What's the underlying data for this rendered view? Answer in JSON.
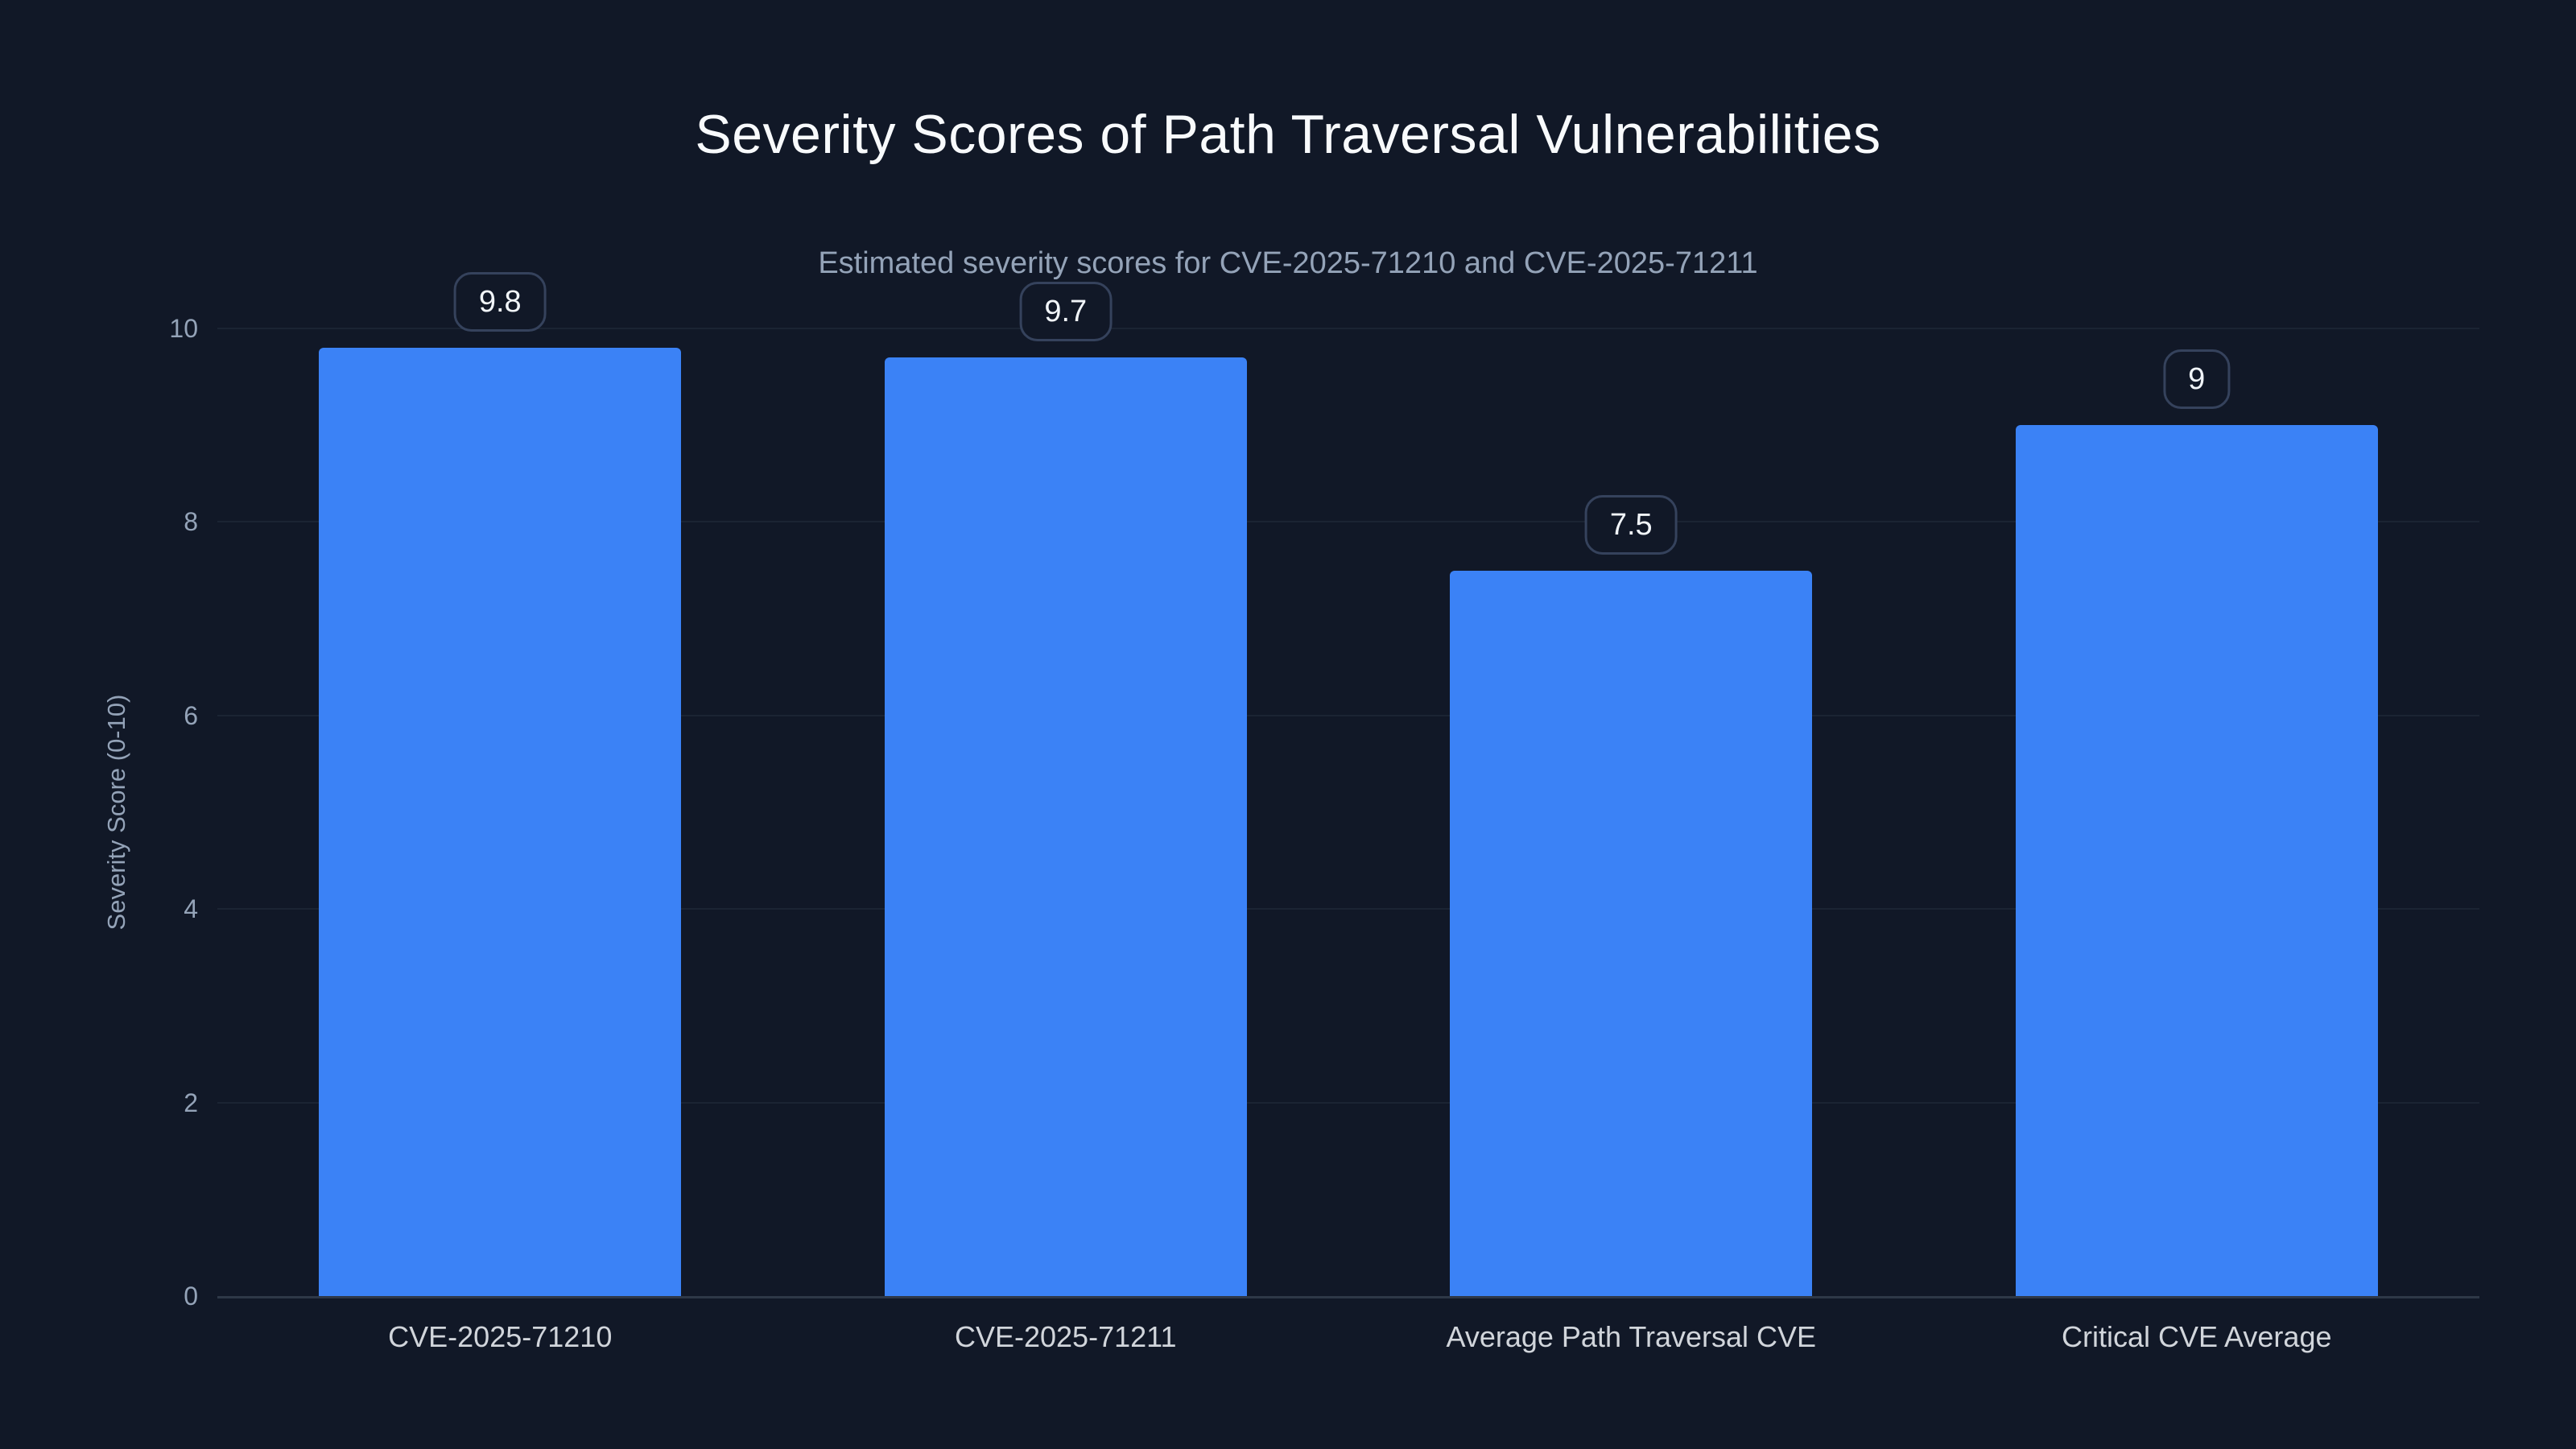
{
  "chart_data": {
    "type": "bar",
    "title": "Severity Scores of Path Traversal Vulnerabilities",
    "subtitle": "Estimated severity scores for CVE-2025-71210 and CVE-2025-71211",
    "categories": [
      "CVE-2025-71210",
      "CVE-2025-71211",
      "Average Path Traversal CVE",
      "Critical CVE Average"
    ],
    "values": [
      9.8,
      9.7,
      7.5,
      9
    ],
    "value_labels": [
      "9.8",
      "9.7",
      "7.5",
      "9"
    ],
    "xlabel": "",
    "ylabel": "Severity Score (0-10)",
    "ylim": [
      0,
      10
    ],
    "yticks": [
      0,
      2,
      4,
      6,
      8,
      10
    ],
    "grid": "horizontal",
    "legend": "none",
    "colors": {
      "background": "#111827",
      "bar": "#3b82f6",
      "title": "#f8fafc",
      "subtitle": "#94a3b8",
      "axis_text": "#94a3b8",
      "category_text": "#d1d5db",
      "gridline": "#1b2433",
      "axis_line": "#2e3847",
      "badge_border": "#35425c",
      "badge_text": "#f1f5f9"
    }
  }
}
